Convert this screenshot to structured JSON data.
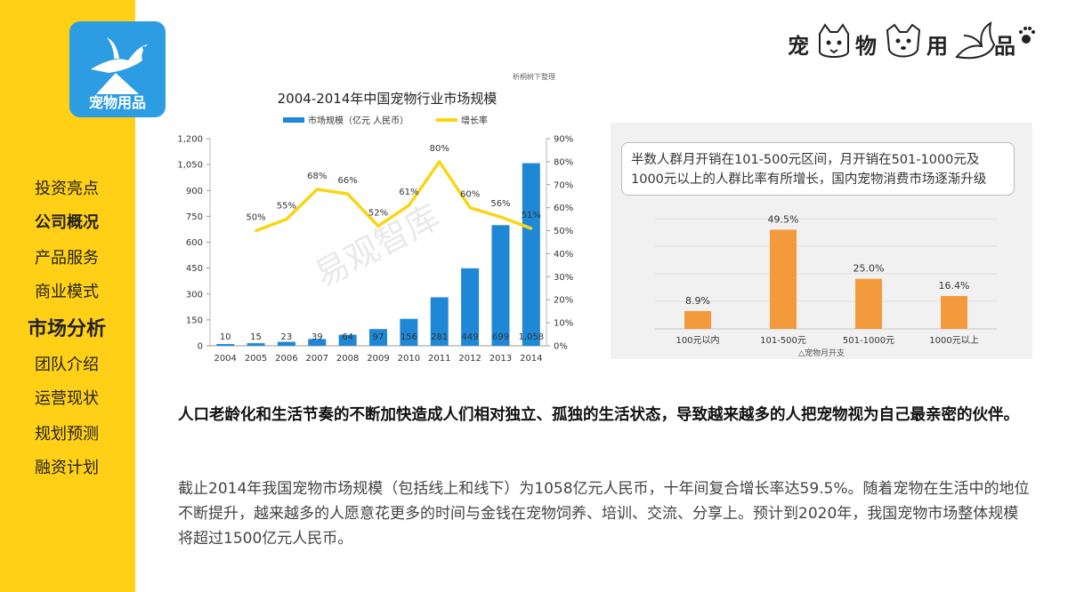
{
  "logo": {
    "label": "宠物用品"
  },
  "brand": {
    "chars": [
      "宠",
      "物",
      "用",
      "品"
    ]
  },
  "nav": {
    "items": [
      {
        "label": "投资亮点",
        "style": "normal"
      },
      {
        "label": "公司概况",
        "style": "bold"
      },
      {
        "label": "产品服务",
        "style": "normal"
      },
      {
        "label": "商业模式",
        "style": "normal"
      },
      {
        "label": "市场分析",
        "style": "active"
      },
      {
        "label": "团队介绍",
        "style": "normal"
      },
      {
        "label": "运营现状",
        "style": "normal"
      },
      {
        "label": "规划预测",
        "style": "normal"
      },
      {
        "label": "融资计划",
        "style": "normal"
      }
    ]
  },
  "chart_data": [
    {
      "type": "bar",
      "title": "2004-2014年中国宠物行业市场规模",
      "source_note": "析桐树下整理",
      "watermark": "易观智库",
      "categories": [
        "2004",
        "2005",
        "2006",
        "2007",
        "2008",
        "2009",
        "2010",
        "2011",
        "2012",
        "2013",
        "2014"
      ],
      "series": [
        {
          "name": "市场规模（亿元 人民币）",
          "kind": "bar",
          "color": "#1E88D7",
          "values": [
            10,
            15,
            23,
            39,
            64,
            97,
            156,
            281,
            449,
            699,
            1058
          ],
          "labels": [
            "10",
            "15",
            "23",
            "39",
            "64",
            "97",
            "156",
            "281",
            "449",
            "699",
            "1,058"
          ]
        },
        {
          "name": "增长率",
          "kind": "line",
          "color": "#F9D516",
          "values": [
            null,
            50,
            55,
            68,
            66,
            52,
            61,
            80,
            60,
            56,
            51
          ],
          "labels": [
            "",
            "50%",
            "55%",
            "68%",
            "66%",
            "52%",
            "61%",
            "80%",
            "60%",
            "56%",
            "51%"
          ]
        }
      ],
      "y_left": {
        "ylim": [
          0,
          1200
        ],
        "ticks": [
          "0",
          "150",
          "300",
          "450",
          "600",
          "750",
          "900",
          "1,050",
          "1,200"
        ]
      },
      "y_right": {
        "ylim": [
          0,
          90
        ],
        "ticks": [
          "0%",
          "10%",
          "20%",
          "30%",
          "40%",
          "50%",
          "60%",
          "70%",
          "80%",
          "90%"
        ]
      },
      "legend_position": "top-center",
      "grid": false
    },
    {
      "type": "bar",
      "callout": "半数人群月开销在101-500元区间，月开销在501-1000元及1000元以上的人群比率有所增长，国内宠物消费市场逐渐升级",
      "categories": [
        "100元以内",
        "101-500元",
        "501-1000元",
        "1000元以上"
      ],
      "values": [
        8.9,
        49.5,
        25.0,
        16.4
      ],
      "labels": [
        "8.9%",
        "49.5%",
        "25.0%",
        "16.4%"
      ],
      "color": "#F39A3D",
      "ylim": [
        0,
        55
      ],
      "caption": "△宠物月开支",
      "grid": true
    }
  ],
  "text": {
    "headline": "人口老龄化和生活节奏的不断加快造成人们相对独立、孤独的生活状态，导致越来越多的人把宠物视为自己最亲密的伙伴。",
    "body": "截止2014年我国宠物市场规模（包括线上和线下）为1058亿元人民币，十年间复合增长率达59.5%。随着宠物在生活中的地位不断提升，越来越多的人愿意花更多的时间与金钱在宠物饲养、培训、交流、分享上。预计到2020年，我国宠物市场整体规模将超过1500亿元人民币。"
  }
}
